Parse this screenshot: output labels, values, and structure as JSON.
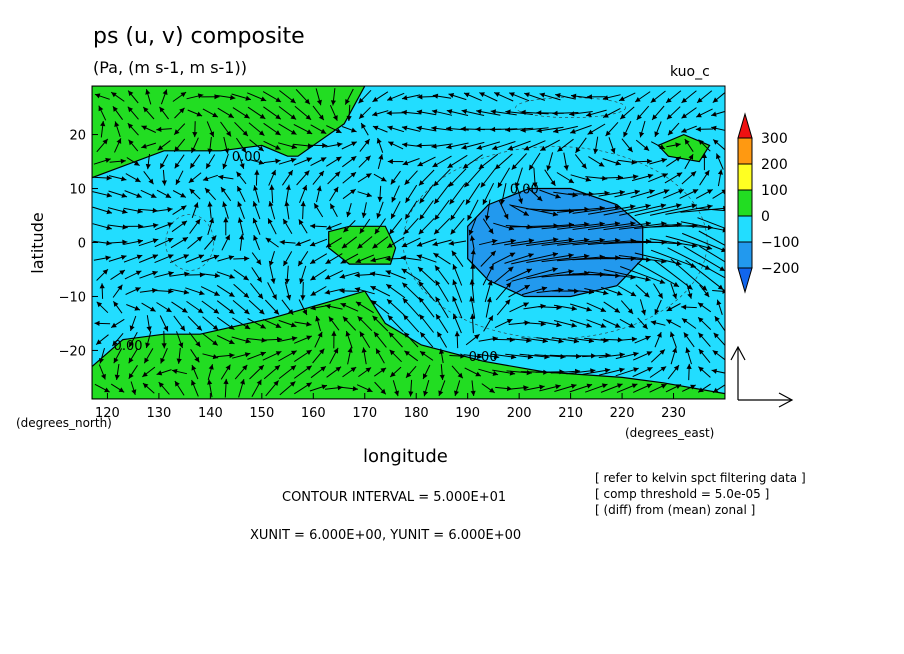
{
  "title": "ps (u, v) composite",
  "subtitle": "(Pa, (m s-1, m s-1))",
  "case_label": "kuo_c",
  "colors": {
    "green": "#22dd22",
    "cyan": "#22ddff",
    "blue": "#2299ee",
    "yellow": "#ffff22",
    "orange": "#ff9911",
    "red": "#ee1111",
    "deepblue": "#1166ee"
  },
  "chart_data": {
    "type": "contour",
    "title": "ps (u, v) composite",
    "subtitle": "(Pa, (m s-1, m s-1))",
    "xlabel": "longitude",
    "ylabel": "latitude",
    "x_unit_label": "(degrees_east)",
    "y_unit_label": "(degrees_north)",
    "xlim": [
      117,
      240
    ],
    "ylim": [
      -29,
      29
    ],
    "x_ticks": [
      120,
      130,
      140,
      150,
      160,
      170,
      180,
      190,
      200,
      210,
      220,
      230
    ],
    "y_ticks": [
      20,
      10,
      0,
      -10,
      -20
    ],
    "x_tick_labels": [
      "120",
      "130",
      "140",
      "150",
      "160",
      "170",
      "180",
      "190",
      "200",
      "210",
      "220",
      "230"
    ],
    "y_tick_labels": [
      "20",
      "10",
      "0",
      "−10",
      "−20"
    ],
    "contour_labels": [
      {
        "text": "0.00",
        "lon": 147,
        "lat": 16
      },
      {
        "text": "0.00",
        "lon": 201,
        "lat": 10
      },
      {
        "text": "0.00",
        "lon": 124,
        "lat": -19
      },
      {
        "text": "0.00",
        "lon": 193,
        "lat": -21
      }
    ],
    "regions": [
      {
        "level": "positive",
        "color_key": "green",
        "description": "northern band",
        "outline": [
          [
            117,
            29
          ],
          [
            170,
            29
          ],
          [
            166,
            22
          ],
          [
            157,
            16
          ],
          [
            155,
            16
          ],
          [
            150,
            18
          ],
          [
            142,
            17
          ],
          [
            131,
            17
          ],
          [
            117,
            12
          ]
        ]
      },
      {
        "level": "positive",
        "color_key": "green",
        "description": "southern band",
        "outline": [
          [
            117,
            -29
          ],
          [
            240,
            -29
          ],
          [
            240,
            -28
          ],
          [
            228,
            -26
          ],
          [
            220,
            -25
          ],
          [
            205,
            -24
          ],
          [
            193,
            -22
          ],
          [
            181,
            -19
          ],
          [
            174,
            -15
          ],
          [
            170,
            -9
          ],
          [
            163,
            -11
          ],
          [
            152,
            -14
          ],
          [
            138,
            -17
          ],
          [
            131,
            -17
          ],
          [
            123,
            -18
          ],
          [
            117,
            -23
          ]
        ]
      },
      {
        "level": "positive",
        "color_key": "green",
        "description": "equatorial island",
        "outline": [
          [
            163,
            2
          ],
          [
            167,
            3
          ],
          [
            174,
            3
          ],
          [
            176,
            -1
          ],
          [
            175,
            -4
          ],
          [
            167,
            -4
          ],
          [
            163,
            -1
          ]
        ]
      },
      {
        "level": "positive",
        "color_key": "green",
        "description": "north-east patch",
        "outline": [
          [
            227,
            18
          ],
          [
            232,
            20
          ],
          [
            237,
            18
          ],
          [
            235,
            15
          ],
          [
            229,
            16
          ]
        ]
      },
      {
        "level": "negative",
        "color_key": "blue",
        "description": "eastern low",
        "outline": [
          [
            190,
            3
          ],
          [
            194,
            7
          ],
          [
            202,
            10
          ],
          [
            210,
            10
          ],
          [
            219,
            7
          ],
          [
            224,
            3
          ],
          [
            224,
            -3
          ],
          [
            219,
            -8
          ],
          [
            210,
            -10
          ],
          [
            201,
            -10
          ],
          [
            194,
            -7
          ],
          [
            190,
            -3
          ]
        ]
      }
    ],
    "wind_field": {
      "description": "(u, v) vectors",
      "grid_dlon": 3,
      "grid_dlat": 3
    },
    "colorbar": {
      "levels": [
        "300",
        "200",
        "100",
        "0",
        "−100",
        "−200"
      ],
      "color_keys": [
        "red",
        "orange",
        "yellow",
        "green",
        "cyan",
        "blue",
        "deepblue"
      ]
    },
    "contour_interval_text": "CONTOUR INTERVAL = 5.000E+01",
    "unit_text": "XUNIT = 6.000E+00, YUNIT = 6.000E+00",
    "notes": [
      "[ refer to kelvin spct filtering data ]",
      "[ comp threshold = 5.0e-05 ]",
      "[ (diff) from (mean) zonal ]"
    ]
  }
}
